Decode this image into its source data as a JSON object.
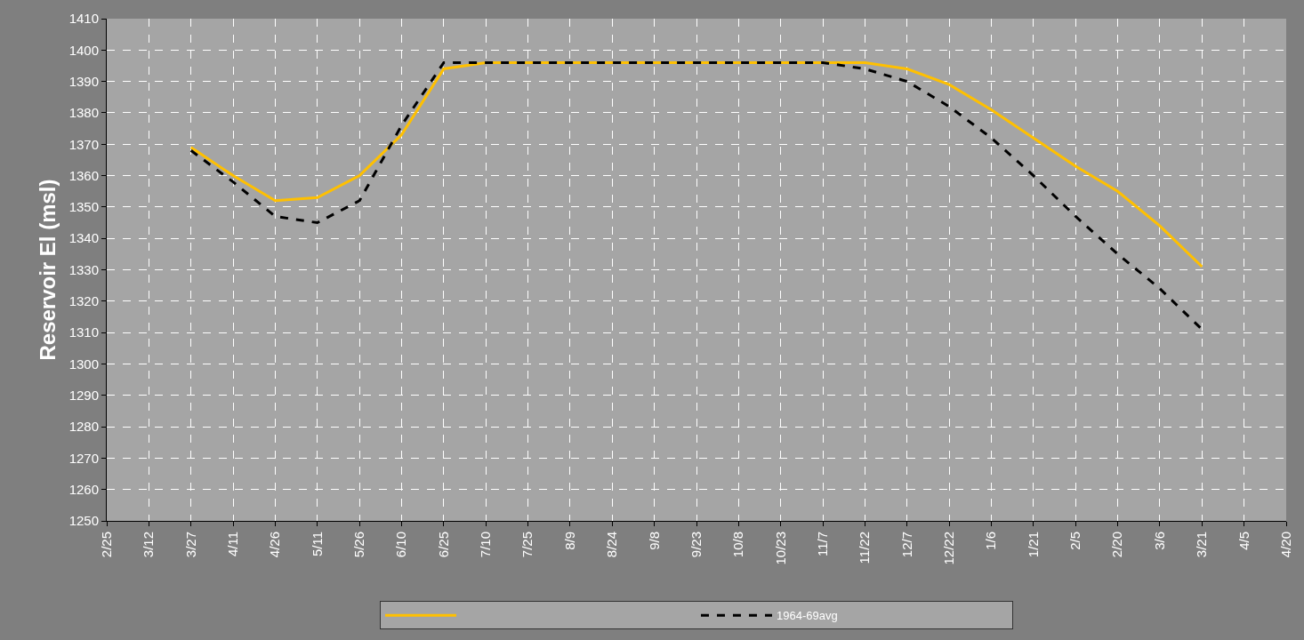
{
  "chart_data": {
    "type": "line",
    "ylabel": "Reservoir El (msl)",
    "categories": [
      "2/25",
      "3/12",
      "3/27",
      "4/11",
      "4/26",
      "5/11",
      "5/26",
      "6/10",
      "6/25",
      "7/10",
      "7/25",
      "8/9",
      "8/24",
      "9/8",
      "9/23",
      "10/8",
      "10/23",
      "11/7",
      "11/22",
      "12/7",
      "12/22",
      "1/6",
      "1/21",
      "2/5",
      "2/20",
      "3/6",
      "3/21",
      "4/5",
      "4/20"
    ],
    "ylim": [
      1250,
      1410
    ],
    "yticks": [
      1250,
      1260,
      1270,
      1280,
      1290,
      1300,
      1310,
      1320,
      1330,
      1340,
      1350,
      1360,
      1370,
      1380,
      1390,
      1400,
      1410
    ],
    "grid": true,
    "legend": "bottom",
    "marker": "none",
    "series": [
      {
        "color": "#ffc000",
        "line_style": "solid",
        "values": [
          null,
          null,
          1369,
          1360,
          1352,
          1353,
          1360,
          1373,
          1394,
          1396,
          1396,
          1396,
          1396,
          1396,
          1396,
          1396,
          1396,
          1396,
          1396,
          1394,
          1389,
          1381,
          1372,
          1363,
          1355,
          1344,
          1331,
          null,
          null
        ]
      },
      {
        "name": "1964-69avg",
        "color": "#000000",
        "line_style": "dashed",
        "values": [
          null,
          null,
          1368,
          1358,
          1347,
          1345,
          1352,
          1376,
          1396,
          1396,
          1396,
          1396,
          1396,
          1396,
          1396,
          1396,
          1396,
          1396,
          1394,
          1390,
          1382,
          1372,
          1360,
          1347,
          1335,
          1324,
          1311,
          null,
          null
        ]
      }
    ]
  }
}
